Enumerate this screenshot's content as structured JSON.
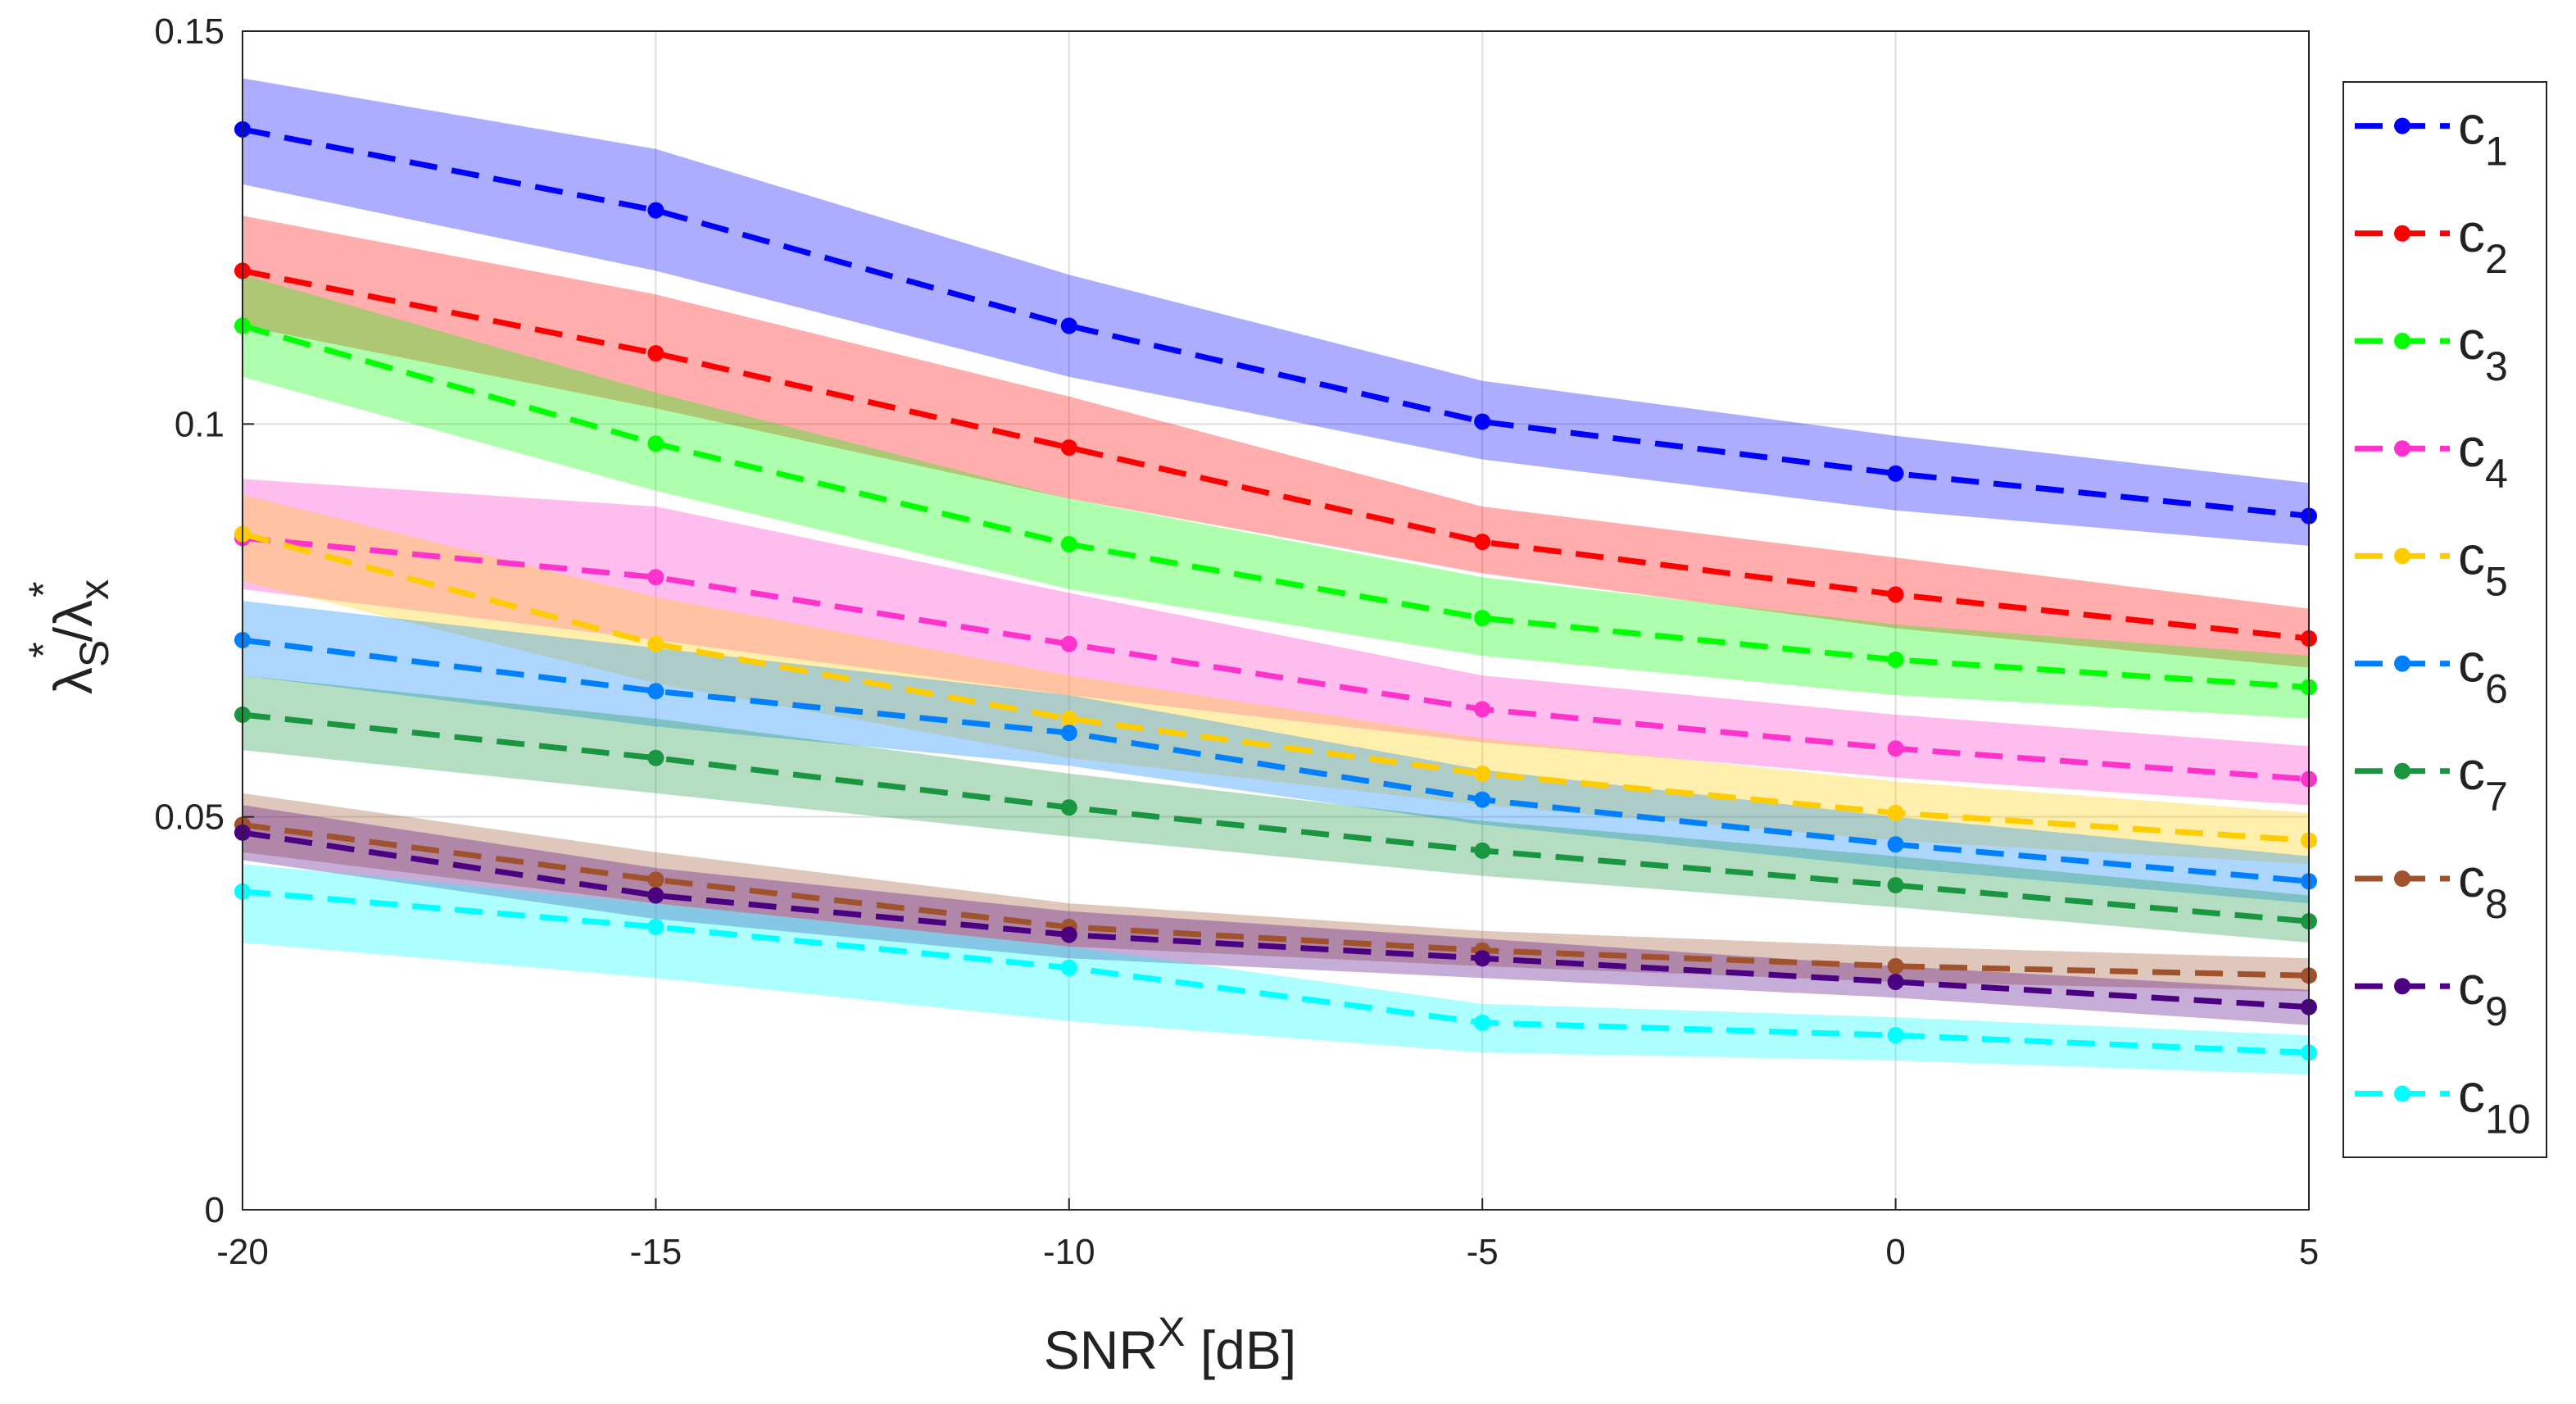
{
  "chart_data": {
    "type": "line",
    "title": "",
    "xlabel": {
      "base": "SNR",
      "sup": "X",
      "suffix": " [dB]"
    },
    "ylabel": {
      "lambda1": "λ",
      "sub1": "S",
      "sup1": "*",
      "slash": "/",
      "lambda2": "λ",
      "sub2": "x",
      "sup2": "*"
    },
    "x": [
      -20,
      -15,
      -10,
      -5,
      0,
      5
    ],
    "xlim": [
      -20,
      5
    ],
    "ylim": [
      0,
      0.15
    ],
    "xticks": [
      "-20",
      "-15",
      "-10",
      "-5",
      "0",
      "5"
    ],
    "yticks": [
      "0",
      "0.05",
      "0.1",
      "0.15"
    ],
    "ytick_values": [
      0,
      0.05,
      0.1,
      0.15
    ],
    "grid": true,
    "legend_position": "outside-right",
    "series": [
      {
        "name": "c",
        "sub": "1",
        "color": "#0000ff",
        "values": [
          0.1375,
          0.1272,
          0.1125,
          0.1003,
          0.0937,
          0.0883
        ],
        "upper": [
          0.144,
          0.135,
          0.119,
          0.1055,
          0.0985,
          0.0925
        ],
        "lower": [
          0.1305,
          0.1195,
          0.106,
          0.0955,
          0.089,
          0.0845
        ]
      },
      {
        "name": "c",
        "sub": "2",
        "color": "#ff0000",
        "values": [
          0.1195,
          0.109,
          0.097,
          0.085,
          0.0783,
          0.0727
        ],
        "upper": [
          0.1265,
          0.1165,
          0.1035,
          0.0895,
          0.083,
          0.0765
        ],
        "lower": [
          0.1125,
          0.102,
          0.0905,
          0.081,
          0.074,
          0.069
        ]
      },
      {
        "name": "c",
        "sub": "3",
        "color": "#00ff00",
        "values": [
          0.1125,
          0.0975,
          0.0847,
          0.0753,
          0.07,
          0.0665
        ],
        "upper": [
          0.119,
          0.104,
          0.0905,
          0.0805,
          0.0745,
          0.0705
        ],
        "lower": [
          0.106,
          0.0915,
          0.079,
          0.0705,
          0.0655,
          0.0625
        ]
      },
      {
        "name": "c",
        "sub": "4",
        "color": "#ff33cc",
        "values": [
          0.0855,
          0.0805,
          0.072,
          0.0637,
          0.0587,
          0.0548
        ],
        "upper": [
          0.093,
          0.0895,
          0.0785,
          0.068,
          0.063,
          0.059
        ],
        "lower": [
          0.079,
          0.0725,
          0.0655,
          0.0595,
          0.055,
          0.0515
        ]
      },
      {
        "name": "c",
        "sub": "5",
        "color": "#ffcc00",
        "values": [
          0.086,
          0.072,
          0.0625,
          0.0555,
          0.0505,
          0.047
        ],
        "upper": [
          0.091,
          0.078,
          0.068,
          0.06,
          0.0545,
          0.0505
        ],
        "lower": [
          0.08,
          0.067,
          0.0575,
          0.0515,
          0.047,
          0.044
        ]
      },
      {
        "name": "c",
        "sub": "6",
        "color": "#0080ff",
        "values": [
          0.0725,
          0.066,
          0.0607,
          0.0522,
          0.0465,
          0.0418
        ],
        "upper": [
          0.0775,
          0.0715,
          0.0655,
          0.056,
          0.05,
          0.045
        ],
        "lower": [
          0.068,
          0.0615,
          0.0565,
          0.049,
          0.0435,
          0.039
        ]
      },
      {
        "name": "c",
        "sub": "7",
        "color": "#1a9641",
        "values": [
          0.063,
          0.0575,
          0.0512,
          0.0457,
          0.0413,
          0.0367
        ],
        "upper": [
          0.068,
          0.0625,
          0.0555,
          0.0495,
          0.045,
          0.04
        ],
        "lower": [
          0.0585,
          0.053,
          0.0475,
          0.0425,
          0.0385,
          0.034
        ]
      },
      {
        "name": "c",
        "sub": "8",
        "color": "#a0522d",
        "values": [
          0.049,
          0.042,
          0.036,
          0.033,
          0.031,
          0.0298
        ],
        "upper": [
          0.053,
          0.0455,
          0.039,
          0.0355,
          0.0335,
          0.032
        ],
        "lower": [
          0.0455,
          0.039,
          0.0335,
          0.031,
          0.029,
          0.0278
        ]
      },
      {
        "name": "c",
        "sub": "9",
        "color": "#4b0082",
        "values": [
          0.048,
          0.04,
          0.035,
          0.032,
          0.029,
          0.0258
        ],
        "upper": [
          0.0515,
          0.0435,
          0.038,
          0.0345,
          0.031,
          0.028
        ],
        "lower": [
          0.0445,
          0.037,
          0.032,
          0.0295,
          0.027,
          0.0235
        ]
      },
      {
        "name": "c",
        "sub": "10",
        "color": "#00ffff",
        "values": [
          0.0405,
          0.036,
          0.0308,
          0.0238,
          0.0222,
          0.02
        ],
        "upper": [
          0.044,
          0.039,
          0.0335,
          0.0262,
          0.0245,
          0.0222
        ],
        "lower": [
          0.034,
          0.0295,
          0.024,
          0.02,
          0.019,
          0.0172
        ]
      }
    ]
  }
}
